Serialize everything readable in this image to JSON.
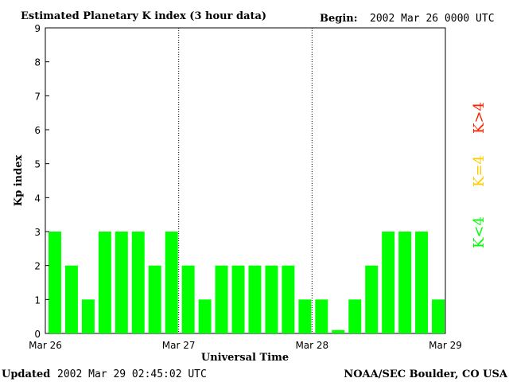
{
  "header": {
    "title": "Estimated Planetary K index (3 hour data)",
    "begin_label": "Begin:",
    "begin_value": "2002 Mar 26 0000 UTC"
  },
  "footer": {
    "updated_label": "Updated",
    "updated_value": "2002 Mar 29 02:45:02 UTC",
    "source": "NOAA/SEC Boulder, CO USA"
  },
  "legend": [
    {
      "label": "K<4",
      "color": "#00ff00"
    },
    {
      "label": "K=4",
      "color": "#ffcc00"
    },
    {
      "label": "K>4",
      "color": "#ff2200"
    }
  ],
  "chart_data": {
    "type": "bar",
    "title": "Estimated Planetary K index (3 hour data)",
    "xlabel": "Universal Time",
    "ylabel": "Kp index",
    "ylim": [
      0,
      9
    ],
    "yticks": [
      "0",
      "1",
      "2",
      "3",
      "4",
      "5",
      "6",
      "7",
      "8",
      "9"
    ],
    "xticks": [
      "Mar 26",
      "Mar 27",
      "Mar 28",
      "Mar 29"
    ],
    "bar_color": "#00ff00",
    "values": [
      3,
      2,
      1,
      3,
      3,
      3,
      2,
      3,
      2,
      1,
      2,
      2,
      2,
      2,
      2,
      1,
      1,
      0.1,
      1,
      2,
      3,
      3,
      3,
      1
    ]
  }
}
